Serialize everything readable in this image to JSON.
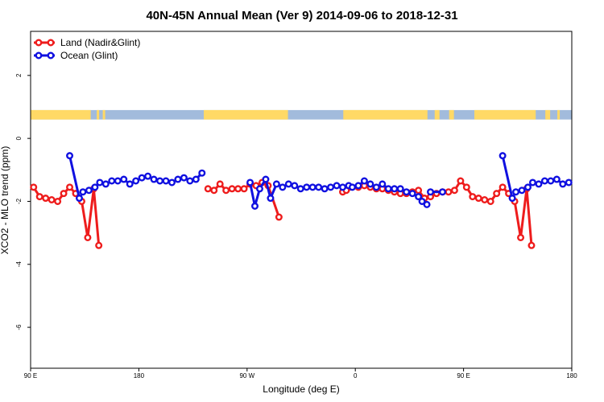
{
  "chart_data": {
    "type": "line",
    "title": "40N-45N Annual Mean (Ver 9)   2014-09-06 to 2018-12-31",
    "xlabel": "Longitude (deg E)",
    "ylabel": "XCO2 - MLO trend (ppm)",
    "xlim": [
      90,
      540
    ],
    "ylim": [
      -7.3,
      3.4
    ],
    "x_ticks": [
      {
        "value": 90,
        "label": "90 E"
      },
      {
        "value": 180,
        "label": "180"
      },
      {
        "value": 270,
        "label": "90 W"
      },
      {
        "value": 360,
        "label": "0"
      },
      {
        "value": 450,
        "label": "90 E"
      },
      {
        "value": 540,
        "label": "180"
      }
    ],
    "y_ticks": [
      2,
      0,
      -2,
      -4,
      -6
    ],
    "grid": false,
    "legend_position": "top-left",
    "land_ocean_strip": {
      "y_range": [
        0.6,
        0.9
      ],
      "land_color": "#FFD966",
      "ocean_color": "#A2BBDC",
      "land_segments": [
        [
          90,
          140
        ],
        [
          145,
          147
        ],
        [
          150,
          152
        ],
        [
          234,
          304
        ],
        [
          350,
          420
        ],
        [
          426,
          430
        ],
        [
          438,
          442
        ],
        [
          459,
          510
        ],
        [
          518,
          522
        ],
        [
          528,
          530
        ]
      ]
    },
    "series": [
      {
        "name": "Land (Nadir&Glint)",
        "color": "#EE1C1C",
        "segments": [
          [
            [
              92.5,
              -1.55
            ],
            [
              97.5,
              -1.85
            ],
            [
              102.5,
              -1.9
            ],
            [
              107.5,
              -1.95
            ],
            [
              112.5,
              -2.0
            ],
            [
              117.5,
              -1.75
            ],
            [
              122.5,
              -1.55
            ],
            [
              127.5,
              -1.75
            ],
            [
              132.5,
              -2.0
            ],
            [
              137.5,
              -3.15
            ],
            [
              142.5,
              -1.6
            ],
            [
              146.7,
              -3.4
            ]
          ],
          [
            [
              237.5,
              -1.6
            ],
            [
              242.5,
              -1.65
            ],
            [
              247.5,
              -1.45
            ],
            [
              252.5,
              -1.65
            ],
            [
              257.5,
              -1.6
            ],
            [
              262.5,
              -1.6
            ],
            [
              267.5,
              -1.6
            ],
            [
              272.5,
              -1.45
            ],
            [
              277.5,
              -1.5
            ],
            [
              282.5,
              -1.4
            ],
            [
              287.5,
              -1.5
            ],
            [
              296.5,
              -2.5
            ]
          ],
          [
            [
              349.5,
              -1.7
            ],
            [
              352.5,
              -1.65
            ],
            [
              362.5,
              -1.55
            ],
            [
              367.5,
              -1.5
            ],
            [
              372.5,
              -1.55
            ],
            [
              377.5,
              -1.6
            ],
            [
              382.5,
              -1.6
            ],
            [
              387.5,
              -1.65
            ],
            [
              392.5,
              -1.7
            ],
            [
              397.5,
              -1.75
            ],
            [
              402.5,
              -1.75
            ],
            [
              407.5,
              -1.7
            ],
            [
              412.5,
              -1.65
            ],
            [
              417.5,
              -1.9
            ],
            [
              422.5,
              -1.85
            ],
            [
              427.5,
              -1.75
            ],
            [
              432.5,
              -1.7
            ],
            [
              437.5,
              -1.7
            ],
            [
              442.5,
              -1.65
            ],
            [
              447.5,
              -1.35
            ],
            [
              452.5,
              -1.55
            ],
            [
              457.5,
              -1.85
            ],
            [
              462.5,
              -1.9
            ],
            [
              467.5,
              -1.95
            ],
            [
              472.5,
              -2.0
            ],
            [
              477.5,
              -1.75
            ],
            [
              482.5,
              -1.55
            ],
            [
              487.5,
              -1.75
            ],
            [
              492.5,
              -2.0
            ],
            [
              497.5,
              -3.15
            ],
            [
              502.5,
              -1.6
            ],
            [
              506.5,
              -3.4
            ]
          ]
        ]
      },
      {
        "name": "Ocean (Glint)",
        "color": "#1010E0",
        "segments": [
          [
            [
              122.5,
              -0.55
            ],
            [
              130.5,
              -1.9
            ],
            [
              133.5,
              -1.7
            ],
            [
              138.5,
              -1.65
            ],
            [
              143.5,
              -1.55
            ],
            [
              147.5,
              -1.4
            ],
            [
              152.5,
              -1.45
            ],
            [
              157.5,
              -1.35
            ],
            [
              162.5,
              -1.35
            ],
            [
              167.5,
              -1.3
            ],
            [
              172.5,
              -1.45
            ],
            [
              177.5,
              -1.35
            ],
            [
              182.5,
              -1.25
            ],
            [
              187.5,
              -1.2
            ],
            [
              192.5,
              -1.3
            ],
            [
              197.5,
              -1.35
            ],
            [
              202.5,
              -1.35
            ],
            [
              207.5,
              -1.4
            ],
            [
              212.5,
              -1.3
            ],
            [
              217.5,
              -1.25
            ],
            [
              222.5,
              -1.35
            ],
            [
              227.5,
              -1.3
            ],
            [
              232.5,
              -1.1
            ]
          ],
          [
            [
              272.5,
              -1.4
            ],
            [
              276.5,
              -2.15
            ],
            [
              280.5,
              -1.6
            ],
            [
              285.5,
              -1.3
            ],
            [
              289.5,
              -1.9
            ],
            [
              294.5,
              -1.45
            ],
            [
              299.5,
              -1.55
            ],
            [
              304.5,
              -1.45
            ],
            [
              309.5,
              -1.5
            ],
            [
              314.5,
              -1.6
            ],
            [
              319.5,
              -1.55
            ],
            [
              324.5,
              -1.55
            ],
            [
              329.5,
              -1.55
            ],
            [
              334.5,
              -1.6
            ],
            [
              339.5,
              -1.55
            ],
            [
              344.5,
              -1.5
            ],
            [
              349.5,
              -1.55
            ],
            [
              354.5,
              -1.5
            ],
            [
              357.5,
              -1.55
            ],
            [
              362.5,
              -1.5
            ],
            [
              367.5,
              -1.35
            ],
            [
              372.5,
              -1.45
            ],
            [
              377.5,
              -1.55
            ],
            [
              382.5,
              -1.45
            ],
            [
              387.5,
              -1.6
            ],
            [
              392.5,
              -1.6
            ],
            [
              397.5,
              -1.6
            ],
            [
              402.5,
              -1.7
            ],
            [
              407.5,
              -1.75
            ],
            [
              412.5,
              -1.85
            ],
            [
              415.5,
              -2.0
            ],
            [
              419.5,
              -2.1
            ]
          ],
          [
            [
              422.5,
              -1.7
            ],
            [
              432.5,
              -1.7
            ]
          ],
          [
            [
              482.5,
              -0.55
            ],
            [
              490.5,
              -1.9
            ],
            [
              493.5,
              -1.7
            ],
            [
              498.5,
              -1.65
            ],
            [
              503.5,
              -1.55
            ],
            [
              507.5,
              -1.4
            ],
            [
              512.5,
              -1.45
            ],
            [
              517.5,
              -1.35
            ],
            [
              522.5,
              -1.35
            ],
            [
              527.5,
              -1.3
            ],
            [
              532.5,
              -1.45
            ],
            [
              537.5,
              -1.4
            ]
          ]
        ]
      }
    ]
  }
}
